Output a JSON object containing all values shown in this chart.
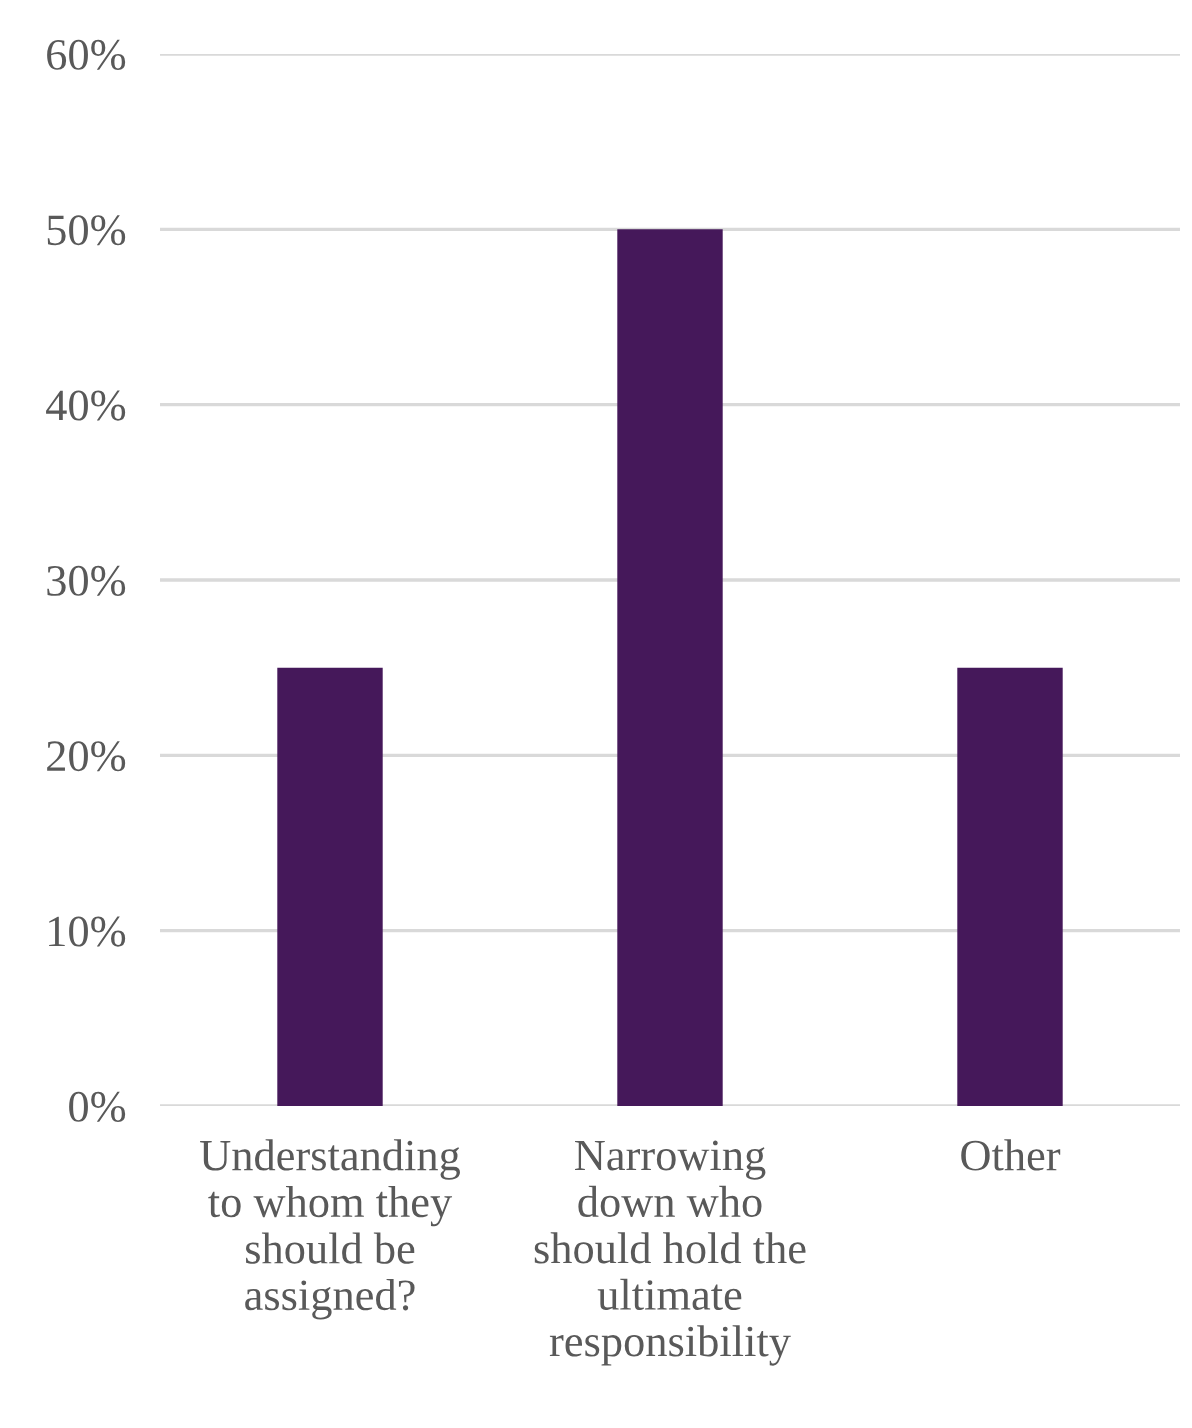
{
  "chart_data": {
    "type": "bar",
    "categories": [
      "Understanding\nto whom they\nshould be\nassigned?",
      "Narrowing\ndown who\nshould hold the\nultimate\nresponsibility",
      "Other"
    ],
    "values": [
      25,
      50,
      25
    ],
    "color": "#45185a",
    "ylim": [
      0,
      60
    ],
    "yticks": [
      {
        "value": 0,
        "label": "0%"
      },
      {
        "value": 10,
        "label": "10%"
      },
      {
        "value": 20,
        "label": "20%"
      },
      {
        "value": 30,
        "label": "30%"
      },
      {
        "value": 40,
        "label": "40%"
      },
      {
        "value": 50,
        "label": "50%"
      },
      {
        "value": 60,
        "label": "60%"
      }
    ],
    "grid": "y",
    "legend": false
  }
}
